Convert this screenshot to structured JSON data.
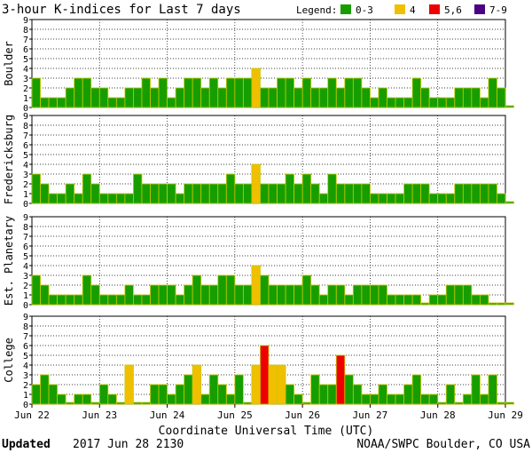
{
  "chart_data": {
    "type": "bar",
    "title": "3-hour K-indices for Last 7 days",
    "legend": {
      "label": "Legend:",
      "placement": "top-right",
      "items": [
        {
          "label": "0-3",
          "color": "#169e00"
        },
        {
          "label": "4",
          "color": "#f0bf00"
        },
        {
          "label": "5,6",
          "color": "#ee0000"
        },
        {
          "label": "7-9",
          "color": "#4b0082"
        }
      ]
    },
    "bar_outline_color": "#c8c800",
    "xlabel": "Coordinate Universal Time (UTC)",
    "x_tick_labels": [
      "Jun 22",
      "Jun 23",
      "Jun 24",
      "Jun 25",
      "Jun 26",
      "Jun 27",
      "Jun 28",
      "Jun 29"
    ],
    "ylim": [
      0,
      9
    ],
    "y_ticks": [
      0,
      1,
      2,
      3,
      4,
      5,
      6,
      7,
      8,
      9
    ],
    "intervals_per_day": 8,
    "panels": [
      {
        "name": "Boulder",
        "values": [
          3,
          1,
          1,
          1,
          2,
          3,
          3,
          2,
          2,
          1,
          1,
          2,
          2,
          3,
          2,
          3,
          1,
          2,
          3,
          3,
          2,
          3,
          2,
          3,
          3,
          3,
          4,
          2,
          2,
          3,
          3,
          2,
          3,
          2,
          2,
          3,
          2,
          3,
          3,
          2,
          1,
          2,
          1,
          1,
          1,
          3,
          2,
          1,
          1,
          1,
          2,
          2,
          2,
          1,
          3,
          2,
          0
        ]
      },
      {
        "name": "Fredericksburg",
        "values": [
          3,
          2,
          1,
          1,
          2,
          1,
          3,
          2,
          1,
          1,
          1,
          1,
          3,
          2,
          2,
          2,
          2,
          1,
          2,
          2,
          2,
          2,
          2,
          3,
          2,
          2,
          4,
          2,
          2,
          2,
          3,
          2,
          3,
          2,
          1,
          3,
          2,
          2,
          2,
          2,
          1,
          1,
          1,
          1,
          2,
          2,
          2,
          1,
          1,
          1,
          2,
          2,
          2,
          2,
          2,
          1,
          0
        ]
      },
      {
        "name": "Est. Planetary",
        "values": [
          3,
          2,
          1,
          1,
          1,
          1,
          3,
          2,
          1,
          1,
          1,
          2,
          1,
          1,
          2,
          2,
          2,
          1,
          2,
          3,
          2,
          2,
          3,
          3,
          2,
          2,
          4,
          3,
          2,
          2,
          2,
          2,
          3,
          2,
          1,
          2,
          2,
          1,
          2,
          2,
          2,
          2,
          1,
          1,
          1,
          1,
          0,
          1,
          1,
          2,
          2,
          2,
          1,
          1,
          0,
          0,
          0
        ]
      },
      {
        "name": "College",
        "values": [
          2,
          3,
          2,
          1,
          0,
          1,
          1,
          0,
          2,
          1,
          0,
          4,
          0,
          0,
          2,
          2,
          1,
          2,
          3,
          4,
          1,
          3,
          2,
          1,
          3,
          0,
          4,
          6,
          4,
          4,
          2,
          1,
          0,
          3,
          2,
          2,
          5,
          3,
          2,
          1,
          1,
          2,
          1,
          1,
          2,
          3,
          1,
          1,
          0,
          2,
          0,
          1,
          3,
          1,
          3,
          0,
          0
        ]
      }
    ],
    "footer": {
      "updated_label": "Updated",
      "updated_value": "2017 Jun 28 2130",
      "credit": "NOAA/SWPC Boulder, CO USA"
    }
  }
}
